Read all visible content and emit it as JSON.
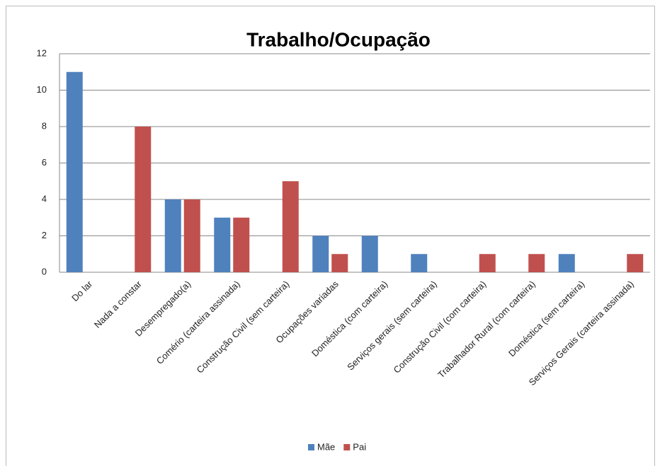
{
  "chart_data": {
    "type": "bar",
    "title": "Trabalho/Ocupação",
    "categories": [
      "Do lar",
      "Nada a constar",
      "Desempregado(a)",
      "Comério (carteira assinada)",
      "Construção Civil (sem carteira)",
      "Ocupações variadas",
      "Doméstica (com carteira)",
      "Serviços gerais (sem carteira)",
      "Construção Civil (com carteira)",
      "Trabalhador Rural (com carteira)",
      "Doméstica (sem carteira)",
      "Serviços Gerais (carteira assinada)"
    ],
    "series": [
      {
        "name": "Mãe",
        "color": "#4f81bd",
        "values": [
          11,
          0,
          4,
          3,
          0,
          2,
          2,
          1,
          0,
          0,
          1,
          0
        ]
      },
      {
        "name": "Pai",
        "color": "#c0504d",
        "values": [
          0,
          8,
          4,
          3,
          5,
          1,
          0,
          0,
          1,
          1,
          0,
          1
        ]
      }
    ],
    "ylim": [
      0,
      12
    ],
    "yticks": [
      0,
      2,
      4,
      6,
      8,
      10,
      12
    ],
    "grid": true,
    "legend": "bottom"
  }
}
